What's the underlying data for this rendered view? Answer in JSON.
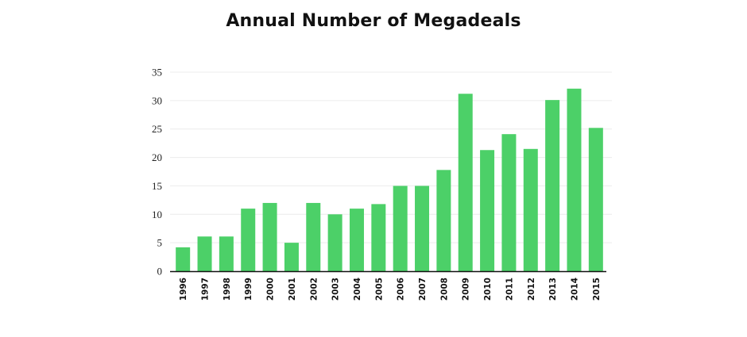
{
  "chart_data": {
    "type": "bar",
    "title": "Annual Number of Megadeals",
    "xlabel": "",
    "ylabel": "",
    "categories": [
      "1996",
      "1997",
      "1998",
      "1999",
      "2000",
      "2001",
      "2002",
      "2003",
      "2004",
      "2005",
      "2006",
      "2007",
      "2008",
      "2009",
      "2010",
      "2011",
      "2012",
      "2013",
      "2014",
      "2015"
    ],
    "values": [
      4.2,
      6.1,
      6.1,
      11,
      12,
      5,
      12,
      10,
      11,
      11.8,
      15,
      15,
      17.8,
      31.2,
      21.3,
      24.1,
      21.5,
      30.1,
      32.1,
      25.2
    ],
    "ylim": [
      0,
      35
    ],
    "yticks": [
      0,
      5,
      10,
      15,
      20,
      25,
      30,
      35
    ],
    "grid": true,
    "bar_color": "#4cd068",
    "axis_color": "#111111",
    "grid_color": "#ececec"
  }
}
